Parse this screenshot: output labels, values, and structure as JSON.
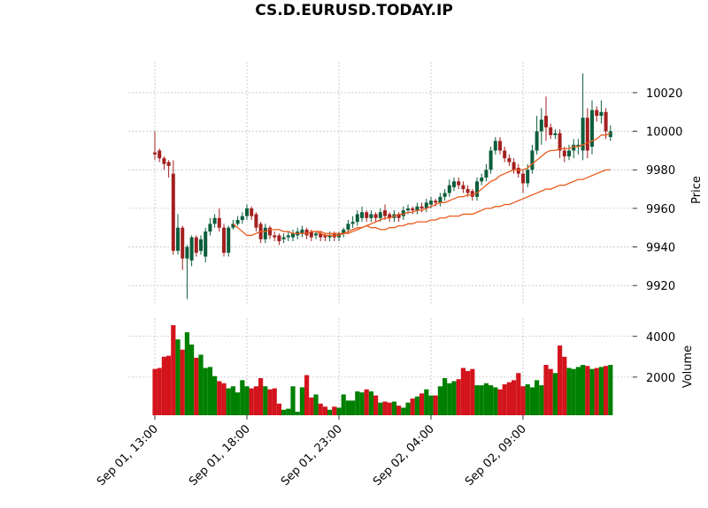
{
  "chart_data": {
    "type": "candlestick",
    "title": "CS.D.EURUSD.TODAY.IP",
    "x": [
      "Sep 01, 13:00",
      "Sep 01, 13:15",
      "Sep 01, 13:30",
      "Sep 01, 13:45",
      "Sep 01, 14:00",
      "Sep 01, 14:15",
      "Sep 01, 14:30",
      "Sep 01, 14:45",
      "Sep 01, 15:00",
      "Sep 01, 15:15",
      "Sep 01, 15:30",
      "Sep 01, 15:45",
      "Sep 01, 16:00",
      "Sep 01, 16:15",
      "Sep 01, 16:30",
      "Sep 01, 16:45",
      "Sep 01, 17:00",
      "Sep 01, 17:15",
      "Sep 01, 17:30",
      "Sep 01, 17:45",
      "Sep 01, 18:00",
      "Sep 01, 18:15",
      "Sep 01, 18:30",
      "Sep 01, 18:45",
      "Sep 01, 19:00",
      "Sep 01, 19:15",
      "Sep 01, 19:30",
      "Sep 01, 19:45",
      "Sep 01, 20:00",
      "Sep 01, 20:15",
      "Sep 01, 20:30",
      "Sep 01, 20:45",
      "Sep 01, 21:00",
      "Sep 01, 21:15",
      "Sep 01, 21:30",
      "Sep 01, 21:45",
      "Sep 01, 22:00",
      "Sep 01, 22:15",
      "Sep 01, 22:30",
      "Sep 01, 22:45",
      "Sep 01, 23:00",
      "Sep 01, 23:15",
      "Sep 01, 23:30",
      "Sep 01, 23:45",
      "Sep 02, 00:00",
      "Sep 02, 00:15",
      "Sep 02, 00:30",
      "Sep 02, 00:45",
      "Sep 02, 01:00",
      "Sep 02, 01:15",
      "Sep 02, 01:30",
      "Sep 02, 01:45",
      "Sep 02, 02:00",
      "Sep 02, 02:15",
      "Sep 02, 02:30",
      "Sep 02, 02:45",
      "Sep 02, 03:00",
      "Sep 02, 03:15",
      "Sep 02, 03:30",
      "Sep 02, 03:45",
      "Sep 02, 04:00",
      "Sep 02, 04:15",
      "Sep 02, 04:30",
      "Sep 02, 04:45",
      "Sep 02, 05:00",
      "Sep 02, 05:15",
      "Sep 02, 05:30",
      "Sep 02, 05:45",
      "Sep 02, 06:00",
      "Sep 02, 06:15",
      "Sep 02, 06:30",
      "Sep 02, 06:45",
      "Sep 02, 07:00",
      "Sep 02, 07:15",
      "Sep 02, 07:30",
      "Sep 02, 07:45",
      "Sep 02, 08:00",
      "Sep 02, 08:15",
      "Sep 02, 08:30",
      "Sep 02, 08:45",
      "Sep 02, 09:00",
      "Sep 02, 09:15",
      "Sep 02, 09:30",
      "Sep 02, 09:45",
      "Sep 02, 10:00",
      "Sep 02, 10:15",
      "Sep 02, 10:30",
      "Sep 02, 10:45",
      "Sep 02, 11:00",
      "Sep 02, 11:15",
      "Sep 02, 11:30",
      "Sep 02, 11:45",
      "Sep 02, 12:00",
      "Sep 02, 12:15",
      "Sep 02, 12:30",
      "Sep 02, 12:45",
      "Sep 02, 13:00",
      "Sep 02, 13:15",
      "Sep 02, 13:30",
      "Sep 02, 13:45"
    ],
    "xticks": [
      "Sep 01, 13:00",
      "Sep 01, 18:00",
      "Sep 01, 23:00",
      "Sep 02, 04:00",
      "Sep 02, 09:00"
    ],
    "open": [
      9989,
      9990,
      9986,
      9984,
      9978,
      9938,
      9950,
      9934,
      9933,
      9945,
      9938,
      9935,
      9948,
      9952,
      9955,
      9950,
      9937,
      9950,
      9952,
      9954,
      9956,
      9960,
      9957,
      9952,
      9944,
      9950,
      9946,
      9946,
      9944,
      9945,
      9945,
      9946,
      9947,
      9949,
      9948,
      9946,
      9947,
      9946,
      9945,
      9947,
      9945,
      9947,
      9949,
      9952,
      9953,
      9955,
      9958,
      9955,
      9957,
      9955,
      9959,
      9957,
      9955,
      9957,
      9956,
      9959,
      9960,
      9959,
      9961,
      9960,
      9962,
      9964,
      9963,
      9966,
      9968,
      9971,
      9974,
      9972,
      9970,
      9969,
      9966,
      9974,
      9976,
      9980,
      9990,
      9995,
      9990,
      9986,
      9984,
      9981,
      9978,
      9973,
      9980,
      9990,
      10000,
      10008,
      10002,
      9998,
      9999,
      9990,
      9987,
      9990,
      9992,
      9990,
      10007,
      9992,
      10011,
      10008,
      10010,
      9997
    ],
    "high": [
      10000,
      9991,
      9987,
      9985,
      9985,
      9957,
      9951,
      9941,
      9946,
      9946,
      9946,
      9950,
      9955,
      9957,
      9960,
      9952,
      9951,
      9954,
      9956,
      9958,
      9962,
      9961,
      9958,
      9953,
      9952,
      9951,
      9948,
      9947,
      9947,
      9948,
      9949,
      9950,
      9951,
      9950,
      9949,
      9948,
      9948,
      9947,
      9948,
      9948,
      9948,
      9950,
      9954,
      9956,
      9959,
      9961,
      9959,
      9959,
      9958,
      9960,
      9962,
      9958,
      9959,
      9958,
      9961,
      9962,
      9961,
      9963,
      9963,
      9965,
      9966,
      9965,
      9968,
      9970,
      9975,
      9976,
      9976,
      9974,
      9972,
      9970,
      9976,
      9978,
      9983,
      9992,
      9997,
      9997,
      9992,
      9988,
      9986,
      9983,
      9980,
      9983,
      9993,
      10008,
      10012,
      10018,
      10004,
      10001,
      10001,
      9992,
      9993,
      9996,
      9996,
      10030,
      10012,
      10016,
      10013,
      10016,
      10012,
      10003
    ],
    "low": [
      9985,
      9984,
      9980,
      9976,
      9936,
      9936,
      9928,
      9913,
      9930,
      9935,
      9936,
      9932,
      9946,
      9950,
      9948,
      9935,
      9935,
      9949,
      9951,
      9952,
      9954,
      9954,
      9948,
      9942,
      9942,
      9944,
      9943,
      9941,
      9942,
      9943,
      9943,
      9944,
      9945,
      9944,
      9943,
      9944,
      9943,
      9943,
      9943,
      9943,
      9943,
      9945,
      9947,
      9950,
      9951,
      9953,
      9953,
      9953,
      9953,
      9953,
      9954,
      9953,
      9953,
      9953,
      9954,
      9957,
      9957,
      9957,
      9958,
      9958,
      9960,
      9961,
      9961,
      9964,
      9966,
      9969,
      9970,
      9968,
      9966,
      9964,
      9964,
      9972,
      9974,
      9978,
      9988,
      9988,
      9984,
      9982,
      9978,
      9976,
      9968,
      9971,
      9978,
      9988,
      9993,
      9995,
      9996,
      9996,
      9986,
      9984,
      9985,
      9986,
      9988,
      9985,
      9986,
      9988,
      10005,
      10004,
      9996,
      9995
    ],
    "close": [
      9988,
      9986,
      9983,
      9982,
      9938,
      9950,
      9934,
      9940,
      9945,
      9937,
      9944,
      9948,
      9952,
      9955,
      9950,
      9937,
      9950,
      9952,
      9954,
      9956,
      9960,
      9956,
      9950,
      9944,
      9950,
      9946,
      9945,
      9943,
      9945,
      9946,
      9947,
      9948,
      9949,
      9946,
      9945,
      9947,
      9945,
      9945,
      9946,
      9945,
      9947,
      9949,
      9952,
      9953,
      9957,
      9958,
      9955,
      9957,
      9955,
      9958,
      9956,
      9955,
      9957,
      9955,
      9959,
      9960,
      9959,
      9961,
      9960,
      9963,
      9964,
      9963,
      9966,
      9968,
      9972,
      9974,
      9972,
      9970,
      9968,
      9966,
      9974,
      9976,
      9980,
      9990,
      9995,
      9990,
      9986,
      9984,
      9980,
      9978,
      9973,
      9980,
      9990,
      10000,
      10006,
      10002,
      9998,
      9999,
      9990,
      9987,
      9990,
      9993,
      9993,
      10007,
      9990,
      10011,
      10008,
      10010,
      10000,
      10000
    ],
    "up_color": "#0b5e3c",
    "down_color": "#a3201f",
    "mav": [
      {
        "color": "#ea5b1d",
        "values": [
          null,
          null,
          null,
          null,
          null,
          null,
          null,
          null,
          null,
          null,
          null,
          null,
          null,
          null,
          null,
          null,
          null,
          9952,
          9950,
          9948,
          9946,
          9946,
          9947,
          9948,
          9948,
          9949,
          9949,
          9949,
          9948,
          9948,
          9947,
          9947,
          9947,
          9947,
          9948,
          9948,
          9947,
          9946,
          9946,
          9946,
          9946,
          9947,
          9947,
          9948,
          9949,
          9950,
          9951,
          9952,
          9953,
          9954,
          9955,
          9955,
          9956,
          9957,
          9957,
          9958,
          9958,
          9959,
          9959,
          9960,
          9961,
          9962,
          9963,
          9963,
          9964,
          9965,
          9966,
          9966,
          9967,
          9967,
          9968,
          9970,
          9972,
          9974,
          9975,
          9977,
          9978,
          9979,
          9980,
          9980,
          9980,
          9981,
          9983,
          9985,
          9987,
          9989,
          9990,
          9990,
          9991,
          9991,
          9991,
          9992,
          9992,
          9993,
          9994,
          9995,
          9996,
          9998,
          9998,
          9999
        ]
      },
      {
        "color": "#ea5b1d",
        "values": [
          null,
          null,
          null,
          null,
          null,
          null,
          null,
          null,
          null,
          null,
          null,
          null,
          null,
          null,
          null,
          null,
          null,
          null,
          null,
          null,
          null,
          null,
          null,
          null,
          null,
          null,
          null,
          null,
          null,
          null,
          null,
          null,
          null,
          null,
          null,
          9948,
          9948,
          9947,
          9947,
          9947,
          9947,
          9947,
          9948,
          9949,
          9950,
          9950,
          9951,
          9950,
          9950,
          9949,
          9949,
          9950,
          9950,
          9951,
          9951,
          9952,
          9952,
          9953,
          9953,
          9953,
          9954,
          9954,
          9955,
          9955,
          9956,
          9956,
          9956,
          9957,
          9957,
          9957,
          9958,
          9959,
          9960,
          9960,
          9961,
          9961,
          9962,
          9962,
          9963,
          9964,
          9965,
          9966,
          9967,
          9968,
          9969,
          9970,
          9970,
          9971,
          9972,
          9972,
          9973,
          9974,
          9975,
          9975,
          9976,
          9977,
          9978,
          9979,
          9980,
          9980
        ]
      }
    ],
    "ylim": [
      9910,
      10036
    ],
    "yticks": [
      9920,
      9940,
      9960,
      9980,
      10000,
      10020
    ],
    "ylabel": "Price",
    "grid": true,
    "volume": {
      "values": [
        2400,
        2450,
        3000,
        3050,
        4550,
        3850,
        3350,
        4200,
        3600,
        2950,
        3100,
        2450,
        2500,
        2050,
        1800,
        1700,
        1450,
        1550,
        1250,
        1850,
        1550,
        1450,
        1550,
        1950,
        1550,
        1400,
        1450,
        700,
        400,
        450,
        1550,
        300,
        1500,
        2100,
        1000,
        1150,
        700,
        550,
        400,
        550,
        500,
        1150,
        850,
        850,
        1300,
        1250,
        1400,
        1300,
        1100,
        750,
        800,
        750,
        800,
        600,
        500,
        750,
        950,
        1050,
        1200,
        1400,
        1100,
        1100,
        1550,
        1950,
        1700,
        1800,
        1900,
        2450,
        2300,
        2400,
        1600,
        1600,
        1700,
        1600,
        1500,
        1400,
        1650,
        1750,
        1850,
        2200,
        1550,
        1650,
        1500,
        1850,
        1600,
        2600,
        2400,
        2200,
        3550,
        3000,
        2450,
        2400,
        2500,
        2600,
        2550,
        2400,
        2450,
        2500,
        2550,
        2600
      ],
      "ylim": [
        130,
        4900
      ],
      "yticks": [
        2000,
        4000
      ],
      "ylabel": "Volume",
      "up_color": "#008000",
      "down_color": "#d3141d"
    }
  }
}
